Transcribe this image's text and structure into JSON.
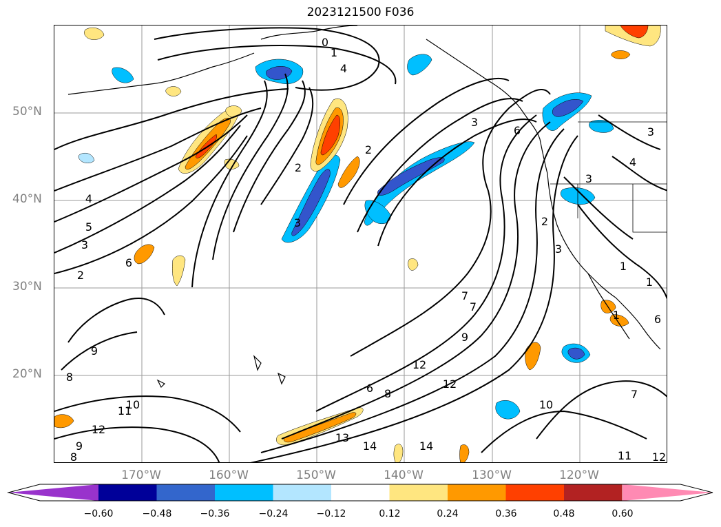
{
  "title": "2023121500 F036",
  "lat_labels": [
    "50°N",
    "40°N",
    "30°N",
    "20°N"
  ],
  "lon_labels": [
    "170°W",
    "160°W",
    "150°W",
    "140°W",
    "130°W",
    "120°W"
  ],
  "contour_labels": [
    "1",
    "4",
    "0",
    "3",
    "2",
    "2",
    "3",
    "4",
    "5",
    "3",
    "2",
    "6",
    "9",
    "8",
    "10",
    "11",
    "12",
    "9",
    "8",
    "13",
    "14",
    "14",
    "6",
    "8",
    "12",
    "10",
    "7",
    "9",
    "12",
    "7",
    "3",
    "4",
    "3",
    "2",
    "1",
    "3",
    "6",
    "1",
    "1",
    "6",
    "11",
    "12",
    "7"
  ],
  "colorbar": {
    "ticks": [
      "−0.60",
      "−0.48",
      "−0.36",
      "−0.24",
      "−0.12",
      "0.12",
      "0.24",
      "0.36",
      "0.48",
      "0.60"
    ],
    "colors": [
      "#9933cc",
      "#000099",
      "#3366cc",
      "#00bfff",
      "#b3e6ff",
      "#ffffff",
      "#ffe680",
      "#ff9900",
      "#ff4000",
      "#b22222",
      "#ff8ab3"
    ]
  },
  "shading_colors": {
    "neg_strong": "#3355cc",
    "neg_mid": "#00bfff",
    "neg_weak": "#b3e6ff",
    "pos_weak": "#ffe680",
    "pos_mid": "#ff9900",
    "pos_strong": "#ff4000"
  }
}
